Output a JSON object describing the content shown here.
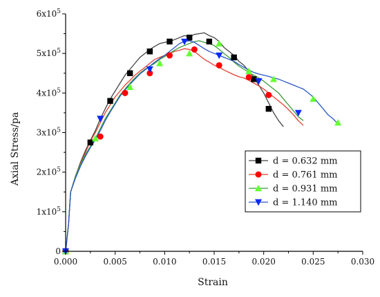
{
  "chart_data": {
    "type": "line",
    "xlabel": "Strain",
    "ylabel": "Axial Stress/pa",
    "xlim": [
      0,
      0.03
    ],
    "ylim": [
      0,
      600000
    ],
    "x_ticks": [
      "0.000",
      "0.005",
      "0.010",
      "0.015",
      "0.020",
      "0.025",
      "0.030"
    ],
    "y_ticks": [
      {
        "mantissa": "0",
        "exp": ""
      },
      {
        "mantissa": "1x10",
        "exp": "5"
      },
      {
        "mantissa": "2x10",
        "exp": "5"
      },
      {
        "mantissa": "3x10",
        "exp": "5"
      },
      {
        "mantissa": "4x10",
        "exp": "5"
      },
      {
        "mantissa": "5x10",
        "exp": "5"
      },
      {
        "mantissa": "6x10",
        "exp": "5"
      }
    ],
    "grid": false,
    "legend_position": "center-right",
    "series": [
      {
        "name": "d = 0.632 mm",
        "color": "#444444",
        "marker_color": "#000000",
        "marker": "square",
        "x": [
          0.0,
          0.0003,
          0.0005,
          0.001,
          0.0015,
          0.002,
          0.0025,
          0.003,
          0.0035,
          0.004,
          0.0045,
          0.005,
          0.0055,
          0.006,
          0.0065,
          0.007,
          0.0075,
          0.008,
          0.0085,
          0.009,
          0.0095,
          0.01,
          0.0105,
          0.011,
          0.0115,
          0.012,
          0.0125,
          0.013,
          0.0135,
          0.014,
          0.0145,
          0.015,
          0.0155,
          0.016,
          0.0165,
          0.017,
          0.0175,
          0.018,
          0.0185,
          0.019,
          0.0195,
          0.02,
          0.0205,
          0.021,
          0.0215,
          0.022
        ],
        "y": [
          0,
          70000,
          150000,
          190000,
          225000,
          255000,
          280000,
          305000,
          335000,
          360000,
          385000,
          405000,
          425000,
          445000,
          460000,
          475000,
          490000,
          500000,
          510000,
          518000,
          525000,
          528000,
          530000,
          535000,
          540000,
          545000,
          542000,
          548000,
          550000,
          552000,
          545000,
          540000,
          530000,
          515000,
          505000,
          495000,
          480000,
          470000,
          455000,
          440000,
          420000,
          400000,
          375000,
          350000,
          330000,
          315000
        ],
        "markers_x": [
          0.0,
          0.0025,
          0.0045,
          0.0065,
          0.0085,
          0.0105,
          0.0125,
          0.0145,
          0.017,
          0.019,
          0.0205
        ],
        "markers_y": [
          0,
          275000,
          380000,
          450000,
          505000,
          530000,
          540000,
          530000,
          490000,
          435000,
          360000
        ]
      },
      {
        "name": "d = 0.761 mm",
        "color": "#e04030",
        "marker_color": "#ff0000",
        "marker": "circle",
        "x": [
          0.0,
          0.0003,
          0.0005,
          0.001,
          0.0015,
          0.002,
          0.0025,
          0.003,
          0.0035,
          0.004,
          0.0045,
          0.005,
          0.0055,
          0.006,
          0.0065,
          0.007,
          0.0075,
          0.008,
          0.0085,
          0.009,
          0.0095,
          0.01,
          0.0105,
          0.011,
          0.0115,
          0.012,
          0.0125,
          0.013,
          0.0135,
          0.014,
          0.0145,
          0.015,
          0.0155,
          0.016,
          0.0165,
          0.017,
          0.0175,
          0.018,
          0.0185,
          0.019,
          0.0195,
          0.02,
          0.0205,
          0.021,
          0.0215,
          0.022,
          0.0225,
          0.023,
          0.0235,
          0.024
        ],
        "y": [
          0,
          70000,
          150000,
          190000,
          222000,
          250000,
          278000,
          300000,
          325000,
          350000,
          370000,
          390000,
          405000,
          420000,
          432000,
          445000,
          455000,
          465000,
          475000,
          485000,
          490000,
          495000,
          500000,
          505000,
          508000,
          512000,
          510000,
          505000,
          495000,
          485000,
          478000,
          470000,
          465000,
          458000,
          452000,
          446000,
          441000,
          438000,
          432000,
          425000,
          418000,
          410000,
          400000,
          390000,
          380000,
          370000,
          358000,
          345000,
          330000,
          318000
        ],
        "markers_x": [
          0.0,
          0.0035,
          0.006,
          0.0085,
          0.0105,
          0.013,
          0.0155,
          0.0185,
          0.0205
        ],
        "markers_y": [
          0,
          290000,
          400000,
          450000,
          495000,
          510000,
          470000,
          440000,
          395000
        ]
      },
      {
        "name": "d = 0.931 mm",
        "color": "#3a9a3a",
        "marker_color": "#66ff33",
        "marker": "triangle-up",
        "x": [
          0.0,
          0.0003,
          0.0005,
          0.001,
          0.0015,
          0.002,
          0.0025,
          0.003,
          0.0035,
          0.004,
          0.0045,
          0.005,
          0.0055,
          0.006,
          0.0065,
          0.007,
          0.0075,
          0.008,
          0.0085,
          0.009,
          0.0095,
          0.01,
          0.0105,
          0.011,
          0.0115,
          0.012,
          0.0125,
          0.013,
          0.0135,
          0.014,
          0.0145,
          0.015,
          0.0155,
          0.016,
          0.0165,
          0.017,
          0.0175,
          0.018,
          0.0185,
          0.019,
          0.0195,
          0.02,
          0.0205,
          0.021,
          0.0215,
          0.022,
          0.0225,
          0.023,
          0.0235,
          0.024
        ],
        "y": [
          0,
          70000,
          150000,
          190000,
          220000,
          245000,
          265000,
          285000,
          310000,
          335000,
          355000,
          375000,
          395000,
          410000,
          425000,
          438000,
          450000,
          460000,
          468000,
          475000,
          485000,
          492000,
          500000,
          508000,
          515000,
          520000,
          525000,
          530000,
          532000,
          528000,
          525000,
          520000,
          510000,
          500000,
          490000,
          478000,
          468000,
          460000,
          452000,
          445000,
          438000,
          430000,
          420000,
          410000,
          400000,
          385000,
          370000,
          355000,
          340000,
          330000
        ],
        "markers_x": [
          0.0,
          0.003,
          0.0065,
          0.0095,
          0.0125,
          0.0155,
          0.0185,
          0.021,
          0.025,
          0.0275
        ],
        "markers_y": [
          0,
          285000,
          415000,
          475000,
          500000,
          525000,
          455000,
          435000,
          385000,
          325000
        ]
      },
      {
        "name": "d = 1.140 mm",
        "color": "#2a56c6",
        "marker_color": "#0a28ff",
        "marker": "triangle-down",
        "x": [
          0.0,
          0.0003,
          0.0005,
          0.001,
          0.0015,
          0.002,
          0.0025,
          0.003,
          0.0035,
          0.004,
          0.0045,
          0.005,
          0.0055,
          0.006,
          0.0065,
          0.007,
          0.0075,
          0.008,
          0.0085,
          0.009,
          0.0095,
          0.01,
          0.0105,
          0.011,
          0.0115,
          0.012,
          0.0125,
          0.013,
          0.0135,
          0.014,
          0.0145,
          0.015,
          0.0155,
          0.016,
          0.0165,
          0.017,
          0.0175,
          0.018,
          0.0185,
          0.019,
          0.0195,
          0.02,
          0.0205,
          0.021,
          0.0215,
          0.022,
          0.0225,
          0.023,
          0.0235,
          0.024,
          0.0245,
          0.025,
          0.0255,
          0.026,
          0.0265,
          0.027,
          0.0275
        ],
        "y": [
          0,
          70000,
          150000,
          185000,
          215000,
          240000,
          262000,
          282000,
          305000,
          330000,
          352000,
          372000,
          392000,
          408000,
          422000,
          435000,
          448000,
          458000,
          468000,
          478000,
          487000,
          495000,
          505000,
          515000,
          525000,
          530000,
          532000,
          528000,
          520000,
          512000,
          505000,
          500000,
          495000,
          490000,
          485000,
          480000,
          472000,
          465000,
          458000,
          452000,
          448000,
          445000,
          442000,
          438000,
          435000,
          430000,
          425000,
          420000,
          415000,
          410000,
          400000,
          390000,
          375000,
          360000,
          345000,
          335000,
          322000
        ],
        "markers_x": [
          0.0,
          0.0035,
          0.0085,
          0.012,
          0.0155,
          0.0195,
          0.0235
        ],
        "markers_y": [
          0,
          335000,
          460000,
          530000,
          495000,
          430000,
          350000
        ]
      }
    ]
  }
}
